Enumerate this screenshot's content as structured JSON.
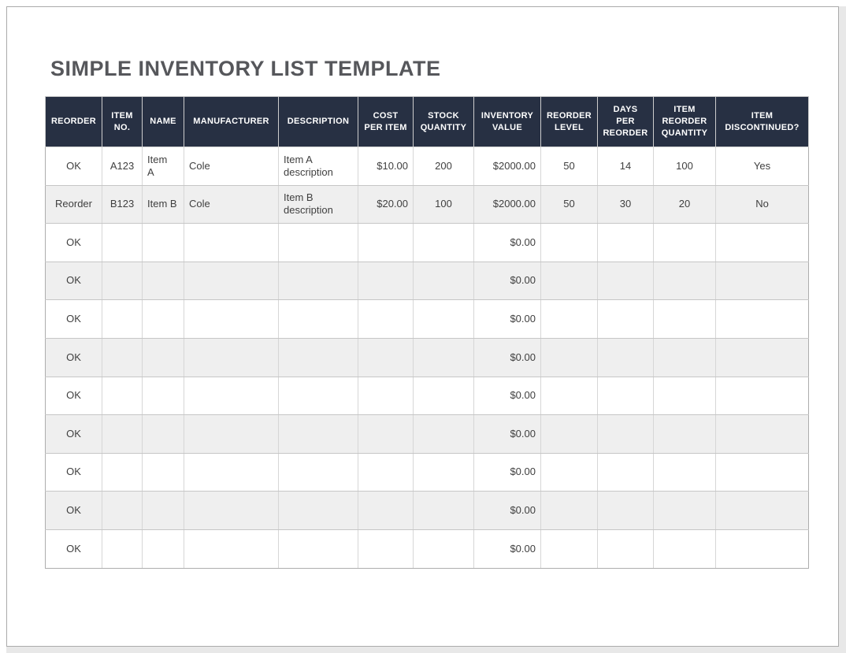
{
  "page": {
    "title": "SIMPLE INVENTORY LIST TEMPLATE"
  },
  "colors": {
    "header_bg": "#273043",
    "header_text": "#FFFFFF",
    "alt_row_bg": "#EFEFEF",
    "grid_line": "#CDCDCD",
    "outer_border": "#ADADAD",
    "title_text": "#56575B",
    "cell_text": "#3F3F3F"
  },
  "table": {
    "columns": [
      {
        "key": "reorder",
        "label": "REORDER"
      },
      {
        "key": "item_no",
        "label": "ITEM\nNO."
      },
      {
        "key": "name",
        "label": "NAME"
      },
      {
        "key": "manufacturer",
        "label": "MANUFACTURER"
      },
      {
        "key": "description",
        "label": "DESCRIPTION"
      },
      {
        "key": "cost_per_item",
        "label": "COST\nPER ITEM"
      },
      {
        "key": "stock_quantity",
        "label": "STOCK\nQUANTITY"
      },
      {
        "key": "inventory_value",
        "label": "INVENTORY\nVALUE"
      },
      {
        "key": "reorder_level",
        "label": "REORDER\nLEVEL"
      },
      {
        "key": "days_per_reorder",
        "label": "DAYS\nPER\nREORDER"
      },
      {
        "key": "item_reorder_quantity",
        "label": "ITEM\nREORDER\nQUANTITY"
      },
      {
        "key": "item_discontinued",
        "label": "ITEM\nDISCONTINUED?"
      }
    ],
    "rows": [
      {
        "cells": [
          "OK",
          "A123",
          "Item\nA",
          "Cole",
          "Item A\ndescription",
          "$10.00",
          "200",
          "$2000.00",
          "50",
          "14",
          "100",
          "Yes"
        ]
      },
      {
        "cells": [
          "Reorder",
          "B123",
          "Item B",
          "Cole",
          "Item B\ndescription",
          "$20.00",
          "100",
          "$2000.00",
          "50",
          "30",
          "20",
          "No"
        ]
      },
      {
        "cells": [
          "OK",
          "",
          "",
          "",
          "",
          "",
          "",
          "$0.00",
          "",
          "",
          "",
          ""
        ]
      },
      {
        "cells": [
          "OK",
          "",
          "",
          "",
          "",
          "",
          "",
          "$0.00",
          "",
          "",
          "",
          ""
        ]
      },
      {
        "cells": [
          "OK",
          "",
          "",
          "",
          "",
          "",
          "",
          "$0.00",
          "",
          "",
          "",
          ""
        ]
      },
      {
        "cells": [
          "OK",
          "",
          "",
          "",
          "",
          "",
          "",
          "$0.00",
          "",
          "",
          "",
          ""
        ]
      },
      {
        "cells": [
          "OK",
          "",
          "",
          "",
          "",
          "",
          "",
          "$0.00",
          "",
          "",
          "",
          ""
        ]
      },
      {
        "cells": [
          "OK",
          "",
          "",
          "",
          "",
          "",
          "",
          "$0.00",
          "",
          "",
          "",
          ""
        ]
      },
      {
        "cells": [
          "OK",
          "",
          "",
          "",
          "",
          "",
          "",
          "$0.00",
          "",
          "",
          "",
          ""
        ]
      },
      {
        "cells": [
          "OK",
          "",
          "",
          "",
          "",
          "",
          "",
          "$0.00",
          "",
          "",
          "",
          ""
        ]
      },
      {
        "cells": [
          "OK",
          "",
          "",
          "",
          "",
          "",
          "",
          "$0.00",
          "",
          "",
          "",
          ""
        ]
      }
    ]
  }
}
